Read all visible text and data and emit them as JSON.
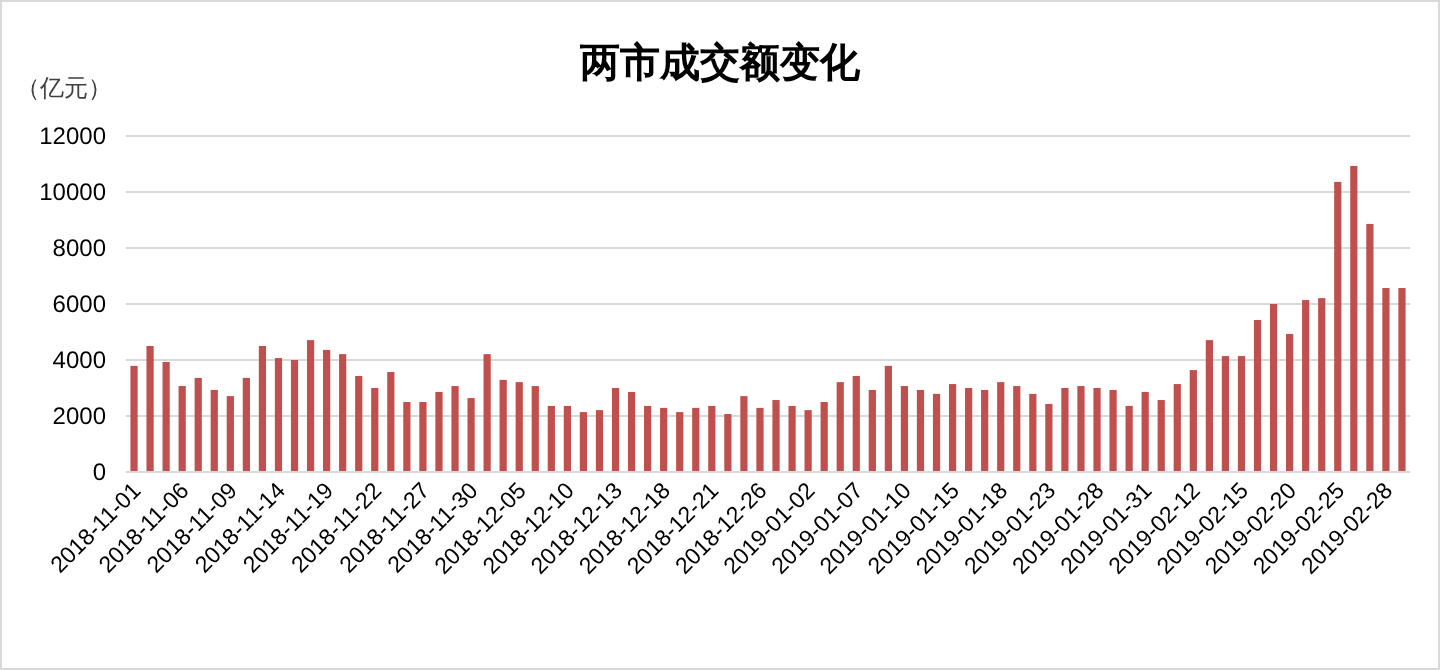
{
  "chart_data": {
    "type": "bar",
    "title": "两市成交额变化",
    "ylabel": "（亿元）",
    "categories": [
      "2018-11-01",
      null,
      null,
      "2018-11-06",
      null,
      null,
      "2018-11-09",
      null,
      null,
      "2018-11-14",
      null,
      null,
      "2018-11-19",
      null,
      null,
      "2018-11-22",
      null,
      null,
      "2018-11-27",
      null,
      null,
      "2018-11-30",
      null,
      null,
      "2018-12-05",
      null,
      null,
      "2018-12-10",
      null,
      null,
      "2018-12-13",
      null,
      null,
      "2018-12-18",
      null,
      null,
      "2018-12-21",
      null,
      null,
      "2018-12-26",
      null,
      null,
      "2019-01-02",
      null,
      null,
      "2019-01-07",
      null,
      null,
      "2019-01-10",
      null,
      null,
      "2019-01-15",
      null,
      null,
      "2019-01-18",
      null,
      null,
      "2019-01-23",
      null,
      null,
      "2019-01-28",
      null,
      null,
      "2019-01-31",
      null,
      null,
      "2019-02-12",
      null,
      null,
      "2019-02-15",
      null,
      null,
      "2019-02-20",
      null,
      null,
      "2019-02-25",
      null,
      null,
      "2019-02-28",
      null
    ],
    "values": [
      3790,
      4500,
      3930,
      3070,
      3360,
      2930,
      2710,
      3360,
      4500,
      4070,
      4000,
      4710,
      4360,
      4210,
      3430,
      3000,
      3570,
      2500,
      2500,
      2860,
      3070,
      2640,
      4210,
      3290,
      3210,
      3070,
      2360,
      2360,
      2140,
      2210,
      3000,
      2860,
      2360,
      2290,
      2140,
      2290,
      2360,
      2070,
      2710,
      2290,
      2570,
      2360,
      2210,
      2500,
      3210,
      3430,
      2930,
      3790,
      3070,
      2930,
      2790,
      3140,
      3000,
      2930,
      3210,
      3070,
      2790,
      2430,
      3000,
      3070,
      3000,
      2930,
      2360,
      2860,
      2570,
      3140,
      3640,
      4710,
      4140,
      4140,
      5430,
      6000,
      4930,
      6140,
      6210,
      10360,
      10930,
      8860,
      6570,
      6570
    ],
    "color": "#c0504d",
    "ylim": [
      0,
      12000
    ],
    "yticks": [
      0,
      2000,
      4000,
      6000,
      8000,
      10000,
      12000
    ],
    "grid": "y"
  }
}
